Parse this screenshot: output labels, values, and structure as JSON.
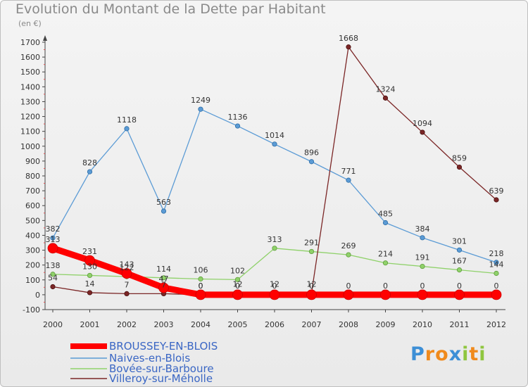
{
  "chart_data": {
    "type": "line",
    "title": "Evolution du Montant de la Dette par Habitant",
    "unit": "(en €)",
    "x": [
      "2000",
      "2001",
      "2002",
      "2003",
      "2004",
      "2005",
      "2006",
      "2007",
      "2008",
      "2009",
      "2010",
      "2011",
      "2012"
    ],
    "ylim": [
      -100,
      1700
    ],
    "yticks": [
      -100,
      0,
      100,
      200,
      300,
      400,
      500,
      600,
      700,
      800,
      900,
      1000,
      1100,
      1200,
      1300,
      1400,
      1500,
      1600,
      1700
    ],
    "grid": false,
    "legend_position": "bottom-left",
    "series": [
      {
        "name": "BROUSSEY-EN-BLOIS",
        "color": "#ff0000",
        "values": [
          313,
          231,
          143,
          47,
          0,
          0,
          0,
          0,
          0,
          0,
          0,
          0,
          0
        ]
      },
      {
        "name": "Naives-en-Blois",
        "color": "#5b9bd5",
        "values": [
          382,
          828,
          1118,
          563,
          1249,
          1136,
          1014,
          896,
          771,
          485,
          384,
          301,
          218
        ]
      },
      {
        "name": "Bovée-sur-Barboure",
        "color": "#8fd16a",
        "values": [
          138,
          130,
          122,
          114,
          106,
          102,
          313,
          291,
          269,
          214,
          191,
          167,
          144
        ]
      },
      {
        "name": "Villeroy-sur-Méholle",
        "color": "#7b2626",
        "values": [
          54,
          14,
          7,
          7,
          0,
          12,
          12,
          12,
          1668,
          1324,
          1094,
          859,
          639
        ]
      }
    ],
    "data_labels": [
      [
        "313",
        "231",
        "143",
        "47",
        "0",
        "0",
        "0",
        "0",
        "0",
        "0",
        "0",
        "0",
        "0"
      ],
      [
        "382",
        "828",
        "1118",
        "563",
        "1249",
        "1136",
        "1014",
        "896",
        "771",
        "485",
        "384",
        "301",
        "218"
      ],
      [
        "138",
        "130",
        "122",
        "114",
        "106",
        "102",
        "313",
        "291",
        "269",
        "214",
        "191",
        "167",
        "144"
      ],
      [
        "54",
        "14",
        "7",
        "7",
        "0",
        "12",
        "12",
        "12",
        "1668",
        "1324",
        "1094",
        "859",
        "639"
      ]
    ]
  },
  "logo": {
    "text": "Proxiti",
    "letters": [
      "P",
      "r",
      "o",
      "x",
      "i",
      "t",
      "i"
    ],
    "colors": [
      "#3d8fd6",
      "#f08a1c",
      "#f08a1c",
      "#3d8fd6",
      "#8fc63f",
      "#f08a1c",
      "#8fc63f"
    ]
  }
}
